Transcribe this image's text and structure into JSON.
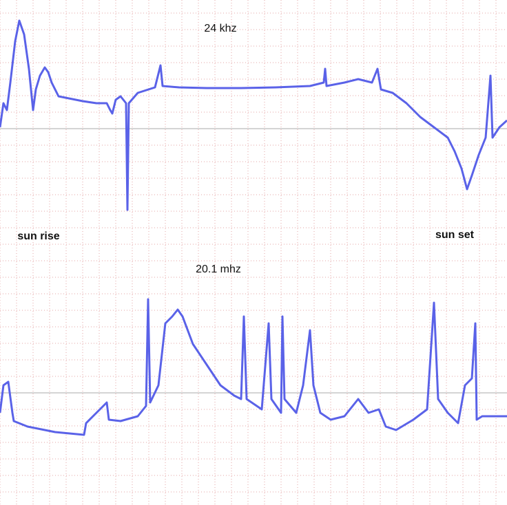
{
  "chart_data": {
    "type": "line",
    "xlim": [
      0,
      736
    ],
    "ylim": [
      -163,
      571
    ],
    "xticks": [
      0,
      24,
      48,
      72,
      96,
      120,
      144,
      168,
      192,
      216,
      240,
      264,
      288,
      312,
      336,
      360,
      384,
      408,
      432,
      456,
      480,
      504,
      528,
      552,
      576,
      600,
      624,
      648,
      672,
      696,
      720
    ],
    "yticks": [
      -144,
      -120,
      -96,
      -72,
      -48,
      -24,
      0,
      24,
      48,
      72,
      96,
      120,
      144,
      168,
      192,
      216,
      240,
      264,
      288,
      312,
      336,
      360,
      384,
      408,
      432,
      456,
      480,
      504,
      528,
      552
    ],
    "major_yticks": [
      0,
      384
    ],
    "grid": true,
    "series": [
      {
        "name": "24 khz",
        "color": "#5a62e8",
        "x": [
          0,
          5,
          10,
          15,
          22,
          28,
          35,
          42,
          48,
          52,
          58,
          65,
          70,
          75,
          85,
          100,
          120,
          140,
          155,
          160,
          163,
          168,
          175,
          183,
          185,
          187,
          200,
          225,
          233,
          236,
          260,
          300,
          350,
          400,
          450,
          470,
          472,
          474,
          500,
          520,
          540,
          548,
          553,
          570,
          590,
          610,
          630,
          650,
          660,
          670,
          678,
          685,
          695,
          705,
          712,
          715,
          725,
          736
        ],
        "values": [
          386,
          421,
          411,
          451,
          511,
          541,
          521,
          471,
          411,
          441,
          461,
          473,
          466,
          451,
          431,
          428,
          424,
          421,
          421,
          411,
          406,
          426,
          431,
          421,
          266,
          421,
          436,
          444,
          476,
          446,
          444,
          443,
          443,
          444,
          446,
          451,
          471,
          446,
          451,
          456,
          451,
          471,
          441,
          436,
          421,
          401,
          386,
          371,
          351,
          326,
          296,
          316,
          346,
          371,
          461,
          371,
          386,
          396
        ]
      },
      {
        "name": "20.1 mhz",
        "color": "#5a62e8",
        "x": [
          0,
          5,
          12,
          18,
          20,
          40,
          80,
          122,
          125,
          140,
          155,
          158,
          175,
          200,
          212,
          215,
          218,
          230,
          240,
          250,
          258,
          265,
          280,
          300,
          320,
          340,
          350,
          354,
          358,
          380,
          390,
          394,
          408,
          410,
          413,
          430,
          440,
          450,
          455,
          465,
          480,
          500,
          520,
          535,
          550,
          560,
          575,
          600,
          620,
          630,
          636,
          650,
          665,
          675,
          685,
          690,
          692,
          700,
          736
        ],
        "values": [
          -29,
          11,
          16,
          -29,
          -41,
          -49,
          -57,
          -61,
          -44,
          -29,
          -14,
          -39,
          -41,
          -34,
          -19,
          136,
          -14,
          11,
          101,
          111,
          121,
          111,
          71,
          41,
          11,
          -4,
          -9,
          111,
          -9,
          -24,
          101,
          -9,
          -29,
          111,
          -9,
          -29,
          11,
          91,
          11,
          -29,
          -39,
          -34,
          -9,
          -29,
          -24,
          -49,
          -54,
          -39,
          -24,
          131,
          -9,
          -29,
          -44,
          11,
          21,
          101,
          -39,
          -34,
          -34
        ]
      }
    ],
    "annotations": [
      "sun rise",
      "sun set"
    ]
  }
}
